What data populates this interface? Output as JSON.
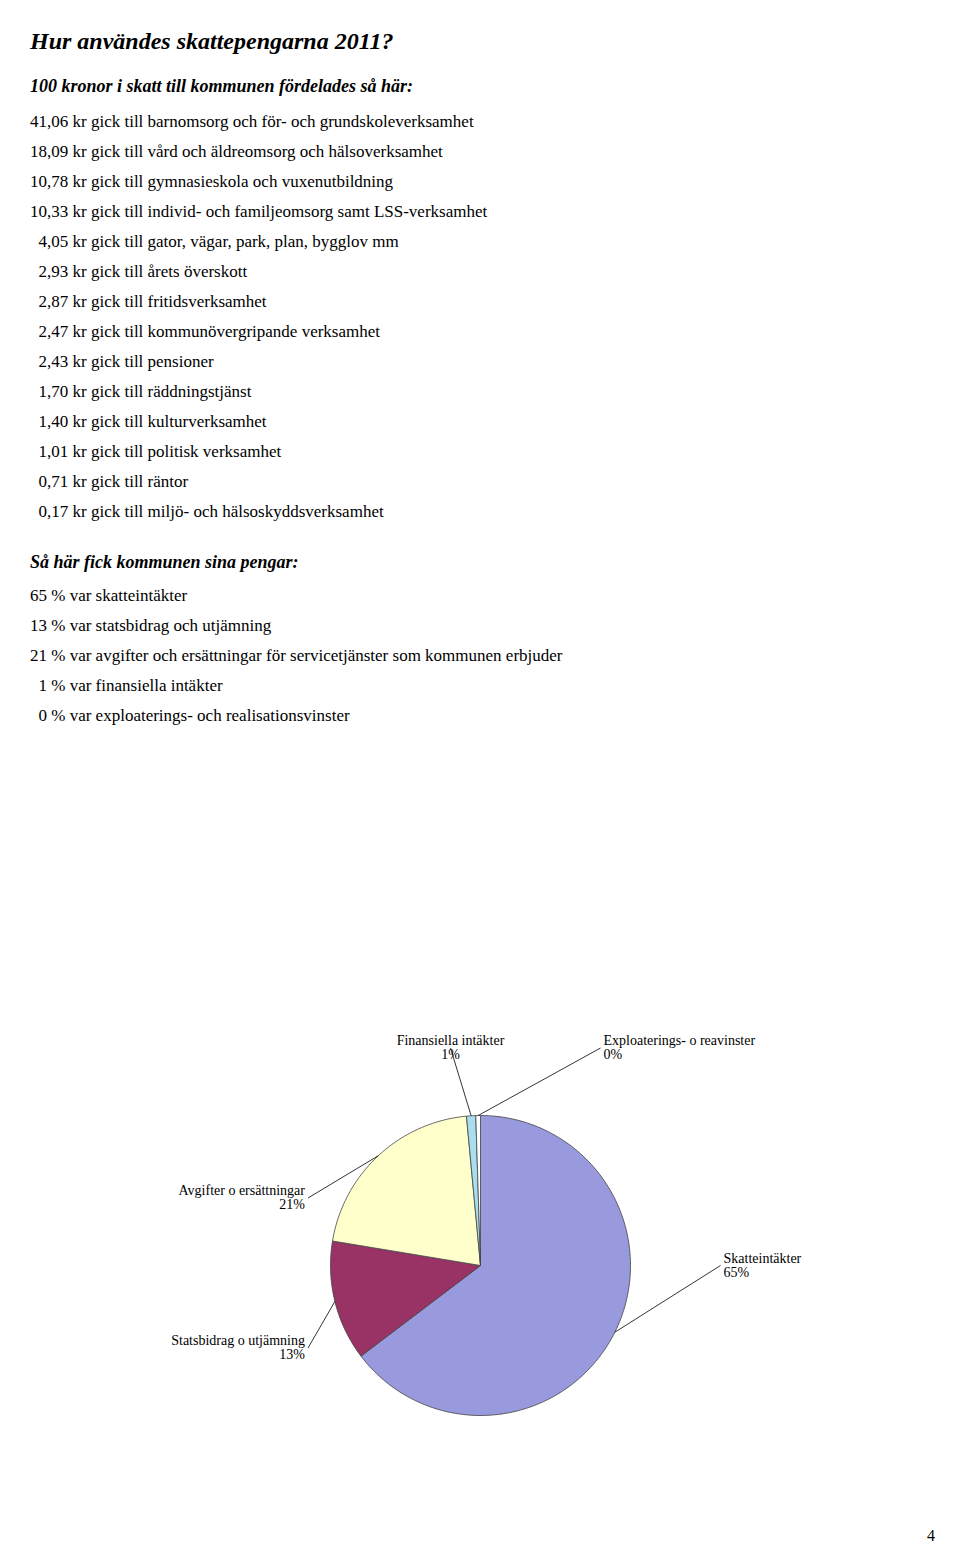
{
  "chart_data": {
    "type": "pie",
    "title": "Hur användes skattepengarna 2011?",
    "subtitle": "100 kronor i skatt till kommunen fördelades så här:",
    "bullet_lines": [
      "41,06 kr gick till barnomsorg och för- och grundskoleverksamhet",
      "18,09 kr gick till vård och äldreomsorg och hälsoverksamhet",
      "10,78 kr gick till gymnasieskola och vuxenutbildning",
      "10,33 kr gick till individ- och familjeomsorg samt LSS-verksamhet",
      "  4,05 kr gick till gator, vägar, park, plan, bygglov mm",
      "  2,93 kr gick till årets överskott",
      "  2,87 kr gick till fritidsverksamhet",
      "  2,47 kr gick till kommunövergripande verksamhet",
      "  2,43 kr gick till pensioner",
      "  1,70 kr gick till räddningstjänst",
      "  1,40 kr gick till kulturverksamhet",
      "  1,01 kr gick till politisk verksamhet",
      "  0,71 kr gick till räntor",
      "  0,17 kr gick till miljö- och hälsoskyddsverksamhet"
    ],
    "section_title": "Så här fick kommunen sina pengar:",
    "section_lines": [
      "65 % var skatteintäkter",
      "13 % var statsbidrag och utjämning",
      "21 % var avgifter och ersättningar för servicetjänster som kommunen erbjuder",
      "  1 % var finansiella intäkter",
      "  0 % var exploaterings- och realisationsvinster"
    ],
    "page_number": "4",
    "categories": [
      "Skatteintäkter",
      "Statsbidrag o utjämning",
      "Avgifter o ersättningar",
      "Finansiella intäkter",
      "Exploaterings- o reavinster"
    ],
    "values": [
      65,
      13,
      21,
      1,
      0.5
    ],
    "value_labels": [
      "65%",
      "13%",
      "21%",
      "1%",
      "0%"
    ],
    "colors": [
      "#9999dd",
      "#993366",
      "#ffffcc",
      "#aaddee",
      "#ffffff"
    ],
    "data_labels": true
  }
}
